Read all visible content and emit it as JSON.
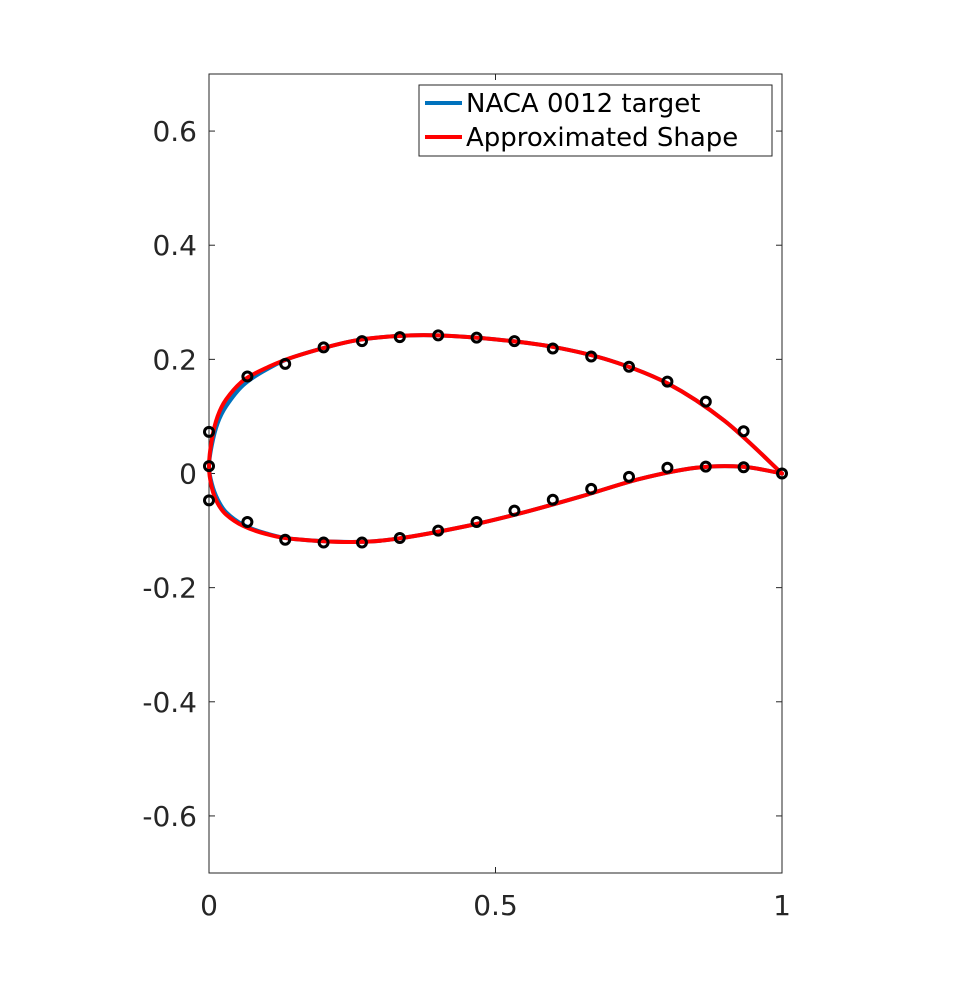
{
  "chart_data": {
    "type": "line",
    "title": "",
    "xlabel": "",
    "ylabel": "",
    "xlim": [
      0,
      1
    ],
    "ylim": [
      -0.7,
      0.7
    ],
    "x_ticks": [
      0,
      0.5,
      1
    ],
    "x_tick_labels": [
      "0",
      "0.5",
      "1"
    ],
    "y_ticks": [
      -0.6,
      -0.4,
      -0.2,
      0,
      0.2,
      0.4,
      0.6
    ],
    "y_tick_labels": [
      "-0.6",
      "-0.4",
      "-0.2",
      "0",
      "0.2",
      "0.4",
      "0.6"
    ],
    "grid": false,
    "legend": {
      "placement": "top-right",
      "entries": [
        {
          "label": "NACA 0012 target",
          "color": "#0072BD"
        },
        {
          "label": "Approximated Shape",
          "color": "#FF0000"
        }
      ]
    },
    "series": [
      {
        "name": "NACA 0012 target",
        "color": "#0072BD",
        "x": [
          1.0,
          0.9,
          0.8,
          0.7,
          0.6,
          0.5,
          0.4,
          0.33,
          0.25,
          0.15,
          0.1,
          0.06,
          0.03,
          0.015,
          0.005,
          0.0,
          0.005,
          0.015,
          0.03,
          0.06,
          0.1,
          0.15,
          0.25,
          0.33,
          0.45,
          0.55,
          0.65,
          0.75,
          0.85,
          0.93,
          1.0
        ],
        "y": [
          0.0,
          0.092,
          0.158,
          0.198,
          0.222,
          0.235,
          0.242,
          0.241,
          0.232,
          0.205,
          0.182,
          0.155,
          0.118,
          0.088,
          0.05,
          0.012,
          -0.018,
          -0.045,
          -0.068,
          -0.09,
          -0.105,
          -0.115,
          -0.12,
          -0.114,
          -0.092,
          -0.068,
          -0.04,
          -0.01,
          0.01,
          0.012,
          0.0
        ]
      },
      {
        "name": "Approximated Shape",
        "color": "#FF0000",
        "x": [
          1.0,
          0.9,
          0.8,
          0.7,
          0.6,
          0.5,
          0.4,
          0.33,
          0.25,
          0.15,
          0.1,
          0.06,
          0.03,
          0.015,
          0.005,
          0.0,
          0.005,
          0.015,
          0.03,
          0.06,
          0.1,
          0.15,
          0.25,
          0.33,
          0.45,
          0.55,
          0.65,
          0.75,
          0.85,
          0.93,
          1.0
        ],
        "y": [
          0.0,
          0.092,
          0.158,
          0.198,
          0.222,
          0.235,
          0.242,
          0.241,
          0.232,
          0.205,
          0.185,
          0.163,
          0.13,
          0.1,
          0.06,
          0.012,
          -0.025,
          -0.052,
          -0.072,
          -0.092,
          -0.106,
          -0.115,
          -0.12,
          -0.114,
          -0.092,
          -0.068,
          -0.04,
          -0.01,
          0.01,
          0.012,
          0.0
        ]
      }
    ],
    "markers": {
      "color": "#000000",
      "x": [
        0.0,
        0.067,
        0.133,
        0.2,
        0.267,
        0.333,
        0.4,
        0.467,
        0.533,
        0.6,
        0.667,
        0.733,
        0.8,
        0.867,
        0.933,
        1.0,
        0.0,
        0.0,
        0.067,
        0.133,
        0.2,
        0.267,
        0.333,
        0.4,
        0.467,
        0.533,
        0.6,
        0.667,
        0.733,
        0.8,
        0.867,
        0.933
      ],
      "y": [
        0.073,
        0.17,
        0.192,
        0.221,
        0.232,
        0.239,
        0.242,
        0.238,
        0.232,
        0.219,
        0.205,
        0.187,
        0.161,
        0.126,
        0.074,
        0.0,
        0.013,
        -0.047,
        -0.085,
        -0.116,
        -0.121,
        -0.121,
        -0.113,
        -0.1,
        -0.085,
        -0.065,
        -0.046,
        -0.027,
        -0.006,
        0.01,
        0.012,
        0.011
      ]
    }
  }
}
